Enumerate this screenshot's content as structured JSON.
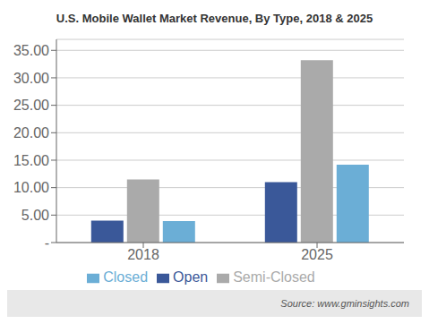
{
  "chart_data": {
    "type": "bar",
    "title": "U.S. Mobile Wallet Market Revenue, By Type, 2018 & 2025",
    "annotation": "Source: www.gminsights.com",
    "categories": [
      "2018",
      "2025"
    ],
    "series": [
      {
        "name": "Open",
        "color": "#3a5899",
        "values": [
          4.0,
          11.0
        ]
      },
      {
        "name": "Semi-Closed",
        "color": "#aaaaaa",
        "values": [
          11.5,
          33.2
        ]
      },
      {
        "name": "Closed",
        "color": "#6baed6",
        "values": [
          3.9,
          14.2
        ]
      }
    ],
    "ylim": [
      0,
      37
    ],
    "yticks": [
      {
        "value": 0,
        "label": "-"
      },
      {
        "value": 5.0,
        "label": "5.00"
      },
      {
        "value": 10.0,
        "label": "10.00"
      },
      {
        "value": 15.0,
        "label": "15.00"
      },
      {
        "value": 20.0,
        "label": "20.00"
      },
      {
        "value": 25.0,
        "label": "25.00"
      },
      {
        "value": 30.0,
        "label": "30.00"
      },
      {
        "value": 35.0,
        "label": "35.00"
      }
    ],
    "grid": true,
    "legend": "bottom"
  }
}
